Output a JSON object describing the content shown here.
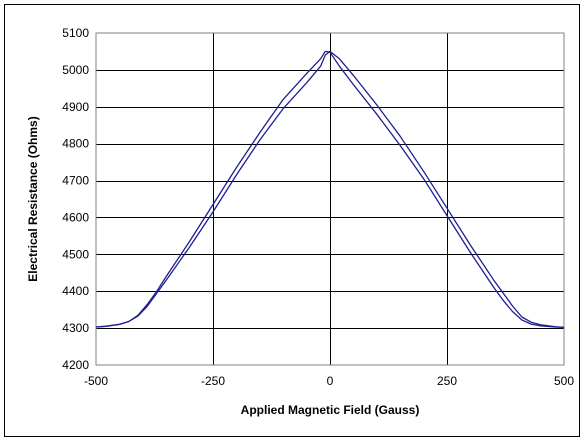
{
  "chart_data": {
    "type": "line",
    "title": "",
    "xlabel": "Applied Magnetic Field (Gauss)",
    "ylabel": "Electrical Resistance (Ohms)",
    "xlim": [
      -500,
      500
    ],
    "ylim": [
      4200,
      5100
    ],
    "xticks": [
      -500,
      -250,
      0,
      250,
      500
    ],
    "yticks": [
      4200,
      4300,
      4400,
      4500,
      4600,
      4700,
      4800,
      4900,
      5000,
      5100
    ],
    "grid": true,
    "legend": "none",
    "colors": {
      "series": "#1f1f8f",
      "grid": "#000000",
      "frame": "#000000",
      "plot_border": "#808080"
    },
    "series": [
      {
        "x": [
          -500,
          -480,
          -450,
          -430,
          -410,
          -390,
          -370,
          -350,
          -300,
          -250,
          -200,
          -150,
          -100,
          -50,
          -20,
          -10,
          0,
          20,
          50,
          100,
          150,
          200,
          250,
          300,
          350,
          370,
          390,
          410,
          430,
          450,
          480,
          500
        ],
        "y": [
          4303,
          4305,
          4310,
          4318,
          4333,
          4360,
          4395,
          4430,
          4520,
          4615,
          4715,
          4810,
          4895,
          4965,
          5010,
          5040,
          5050,
          5030,
          4985,
          4905,
          4820,
          4725,
          4625,
          4525,
          4430,
          4395,
          4360,
          4330,
          4316,
          4309,
          4304,
          4302
        ]
      },
      {
        "x": [
          -500,
          -480,
          -450,
          -430,
          -410,
          -390,
          -370,
          -350,
          -300,
          -250,
          -200,
          -150,
          -100,
          -50,
          -20,
          -10,
          0,
          20,
          50,
          100,
          150,
          200,
          250,
          300,
          350,
          370,
          390,
          410,
          430,
          450,
          480,
          500
        ],
        "y": [
          4303,
          4305,
          4310,
          4318,
          4335,
          4365,
          4400,
          4440,
          4535,
          4635,
          4735,
          4830,
          4920,
          4990,
          5030,
          5050,
          5048,
          5010,
          4960,
          4880,
          4795,
          4705,
          4605,
          4505,
          4410,
          4375,
          4345,
          4322,
          4311,
          4306,
          4303,
          4302
        ]
      }
    ]
  }
}
